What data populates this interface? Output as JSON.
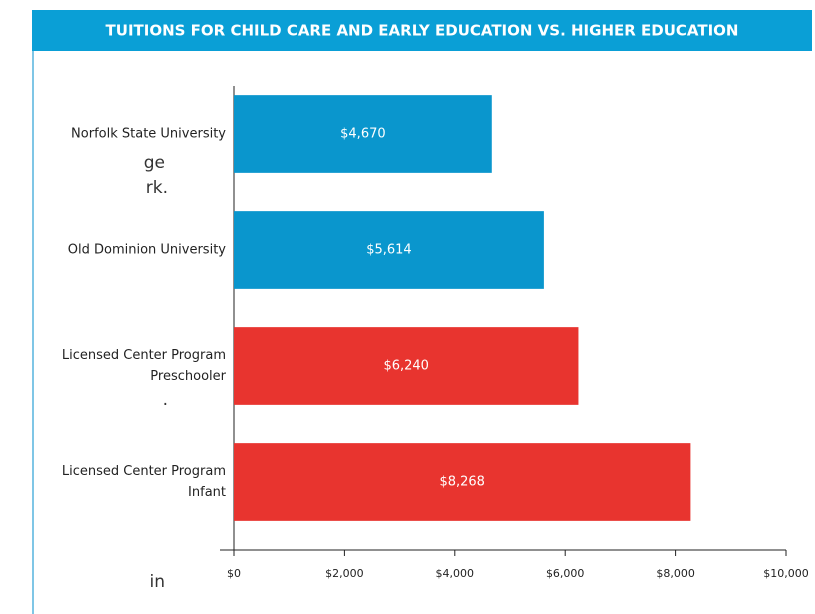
{
  "background_text": [
    "ge",
    "rk.",
    ".",
    "in"
  ],
  "chart_data": {
    "type": "bar",
    "orientation": "horizontal",
    "title": "TUITIONS FOR CHILD CARE AND EARLY EDUCATION VS. HIGHER EDUCATION",
    "categories": [
      [
        "Norfolk State University"
      ],
      [
        "Old Dominion University"
      ],
      [
        "Licensed Center Program",
        "Preschooler"
      ],
      [
        "Licensed Center Program",
        "Infant"
      ]
    ],
    "values": [
      4670,
      5614,
      6240,
      8268
    ],
    "value_labels": [
      "$4,670",
      "$5,614",
      "$6,240",
      "$8,268"
    ],
    "colors": [
      "#0a96cd",
      "#0a96cd",
      "#e8342f",
      "#e8342f"
    ],
    "xlim": [
      0,
      10000
    ],
    "xticks": [
      {
        "value": 0,
        "label": "$0"
      },
      {
        "value": 2000,
        "label": "$2,000"
      },
      {
        "value": 4000,
        "label": "$4,000"
      },
      {
        "value": 6000,
        "label": "$6,000"
      },
      {
        "value": 8000,
        "label": "$8,000"
      },
      {
        "value": 10000,
        "label": "$10,000"
      }
    ],
    "grid": false
  }
}
